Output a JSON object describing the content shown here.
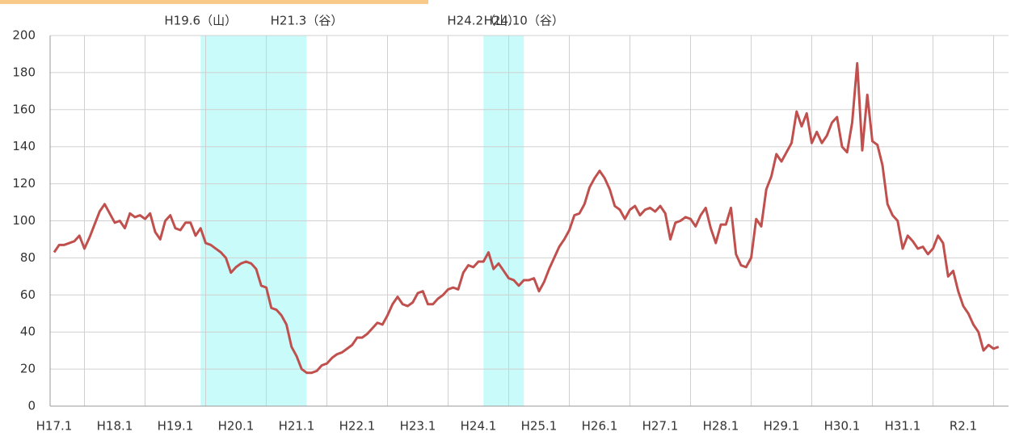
{
  "chart_data": {
    "type": "line",
    "categories": [
      "H17.1",
      null,
      null,
      null,
      null,
      null,
      null,
      null,
      null,
      null,
      null,
      null,
      "H18.1",
      null,
      null,
      null,
      null,
      null,
      null,
      null,
      null,
      null,
      null,
      null,
      "H19.1",
      null,
      null,
      null,
      null,
      null,
      null,
      null,
      null,
      null,
      null,
      null,
      "H20.1",
      null,
      null,
      null,
      null,
      null,
      null,
      null,
      null,
      null,
      null,
      null,
      "H21.1",
      null,
      null,
      null,
      null,
      null,
      null,
      null,
      null,
      null,
      null,
      null,
      "H22.1",
      null,
      null,
      null,
      null,
      null,
      null,
      null,
      null,
      null,
      null,
      null,
      "H23.1",
      null,
      null,
      null,
      null,
      null,
      null,
      null,
      null,
      null,
      null,
      null,
      "H24.1",
      null,
      null,
      null,
      null,
      null,
      null,
      null,
      null,
      null,
      null,
      null,
      "H25.1",
      null,
      null,
      null,
      null,
      null,
      null,
      null,
      null,
      null,
      null,
      null,
      "H26.1",
      null,
      null,
      null,
      null,
      null,
      null,
      null,
      null,
      null,
      null,
      null,
      "H27.1",
      null,
      null,
      null,
      null,
      null,
      null,
      null,
      null,
      null,
      null,
      null,
      "H28.1",
      null,
      null,
      null,
      null,
      null,
      null,
      null,
      null,
      null,
      null,
      null,
      "H29.1",
      null,
      null,
      null,
      null,
      null,
      null,
      null,
      null,
      null,
      null,
      null,
      "H30.1",
      null,
      null,
      null,
      null,
      null,
      null,
      null,
      null,
      null,
      null,
      null,
      "H31.1",
      null,
      null,
      null,
      null,
      null,
      null,
      null,
      null,
      null,
      null,
      null,
      "R2.1",
      null,
      null,
      null,
      null,
      null,
      null,
      null
    ],
    "values": [
      83,
      87,
      87,
      88,
      89,
      92,
      85,
      91,
      98,
      105,
      109,
      104,
      99,
      100,
      96,
      104,
      102,
      103,
      101,
      104,
      94,
      90,
      100,
      103,
      96,
      95,
      99,
      99,
      92,
      96,
      88,
      87,
      85,
      83,
      80,
      72,
      75,
      77,
      78,
      77,
      74,
      65,
      64,
      53,
      52,
      49,
      44,
      32,
      27,
      20,
      18,
      18,
      19,
      22,
      23,
      26,
      28,
      29,
      31,
      33,
      37,
      37,
      39,
      42,
      45,
      44,
      49,
      55,
      59,
      55,
      54,
      56,
      61,
      62,
      55,
      55,
      58,
      60,
      63,
      64,
      63,
      72,
      76,
      75,
      78,
      78,
      83,
      74,
      77,
      73,
      69,
      68,
      65,
      68,
      68,
      69,
      62,
      67,
      74,
      80,
      86,
      90,
      95,
      103,
      104,
      109,
      118,
      123,
      127,
      123,
      117,
      108,
      106,
      101,
      106,
      108,
      103,
      106,
      107,
      105,
      108,
      104,
      90,
      99,
      100,
      102,
      101,
      97,
      103,
      107,
      96,
      88,
      98,
      98,
      107,
      82,
      76,
      75,
      80,
      101,
      97,
      117,
      124,
      136,
      132,
      137,
      142,
      159,
      151,
      158,
      142,
      148,
      142,
      146,
      153,
      156,
      140,
      137,
      153,
      185,
      138,
      168,
      143,
      141,
      130,
      109,
      103,
      100,
      85,
      92,
      89,
      85,
      86,
      82,
      85,
      92,
      88,
      70,
      73,
      62,
      54,
      50,
      44,
      40,
      30,
      33,
      31,
      32
    ],
    "color": "#c0504d",
    "ylim": [
      0,
      200
    ],
    "yticks": [
      0,
      20,
      40,
      60,
      80,
      100,
      120,
      140,
      160,
      180,
      200
    ],
    "grid": true,
    "shaded": [
      {
        "start": 29,
        "end": 50,
        "start_label": "H19.6（山）",
        "end_label": "H21.3（谷）",
        "color": "#c9fbfb"
      },
      {
        "start": 85,
        "end": 93,
        "start_label": "H24.2（山）",
        "end_label": "H24.10（谷）",
        "color": "#c9fbfb"
      }
    ]
  }
}
